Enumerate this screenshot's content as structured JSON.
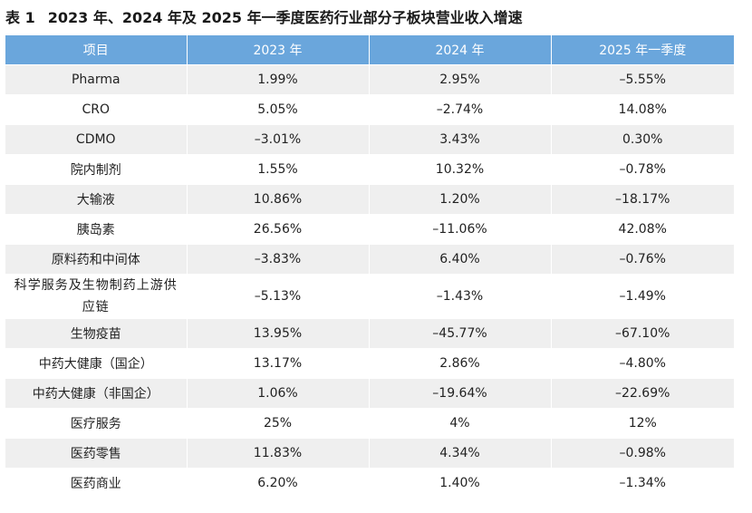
{
  "caption": {
    "label": "表 1",
    "title": "2023 年、2024 年及 2025 年一季度医药行业部分子板块营业收入增速"
  },
  "table": {
    "headers": [
      "项目",
      "2023 年",
      "2024 年",
      "2025 年一季度"
    ],
    "rows": [
      {
        "name": "Pharma",
        "y2023": "1.99%",
        "y2024": "2.95%",
        "q1_2025": "–5.55%"
      },
      {
        "name": "CRO",
        "y2023": "5.05%",
        "y2024": "–2.74%",
        "q1_2025": "14.08%"
      },
      {
        "name": "CDMO",
        "y2023": "–3.01%",
        "y2024": "3.43%",
        "q1_2025": "0.30%"
      },
      {
        "name": "院内制剂",
        "y2023": "1.55%",
        "y2024": "10.32%",
        "q1_2025": "–0.78%"
      },
      {
        "name": "大输液",
        "y2023": "10.86%",
        "y2024": "1.20%",
        "q1_2025": "–18.17%"
      },
      {
        "name": "胰岛素",
        "y2023": "26.56%",
        "y2024": "–11.06%",
        "q1_2025": "42.08%"
      },
      {
        "name": "原料药和中间体",
        "y2023": "–3.83%",
        "y2024": "6.40%",
        "q1_2025": "–0.76%"
      },
      {
        "name": "科学服务及生物制药上游供应链",
        "y2023": "–5.13%",
        "y2024": "–1.43%",
        "q1_2025": "–1.49%"
      },
      {
        "name": "生物疫苗",
        "y2023": "13.95%",
        "y2024": "–45.77%",
        "q1_2025": "–67.10%"
      },
      {
        "name": "中药大健康（国企）",
        "y2023": "13.17%",
        "y2024": "2.86%",
        "q1_2025": "–4.80%"
      },
      {
        "name": "中药大健康（非国企）",
        "y2023": "1.06%",
        "y2024": "–19.64%",
        "q1_2025": "–22.69%"
      },
      {
        "name": "医疗服务",
        "y2023": "25%",
        "y2024": "4%",
        "q1_2025": "12%"
      },
      {
        "name": "医药零售",
        "y2023": "11.83%",
        "y2024": "4.34%",
        "q1_2025": "–0.98%"
      },
      {
        "name": "医药商业",
        "y2023": "6.20%",
        "y2024": "1.40%",
        "q1_2025": "–1.34%"
      }
    ]
  },
  "colors": {
    "header_bg": "#6aa6dc",
    "header_text": "#ffffff",
    "stripe": "#efefef"
  }
}
